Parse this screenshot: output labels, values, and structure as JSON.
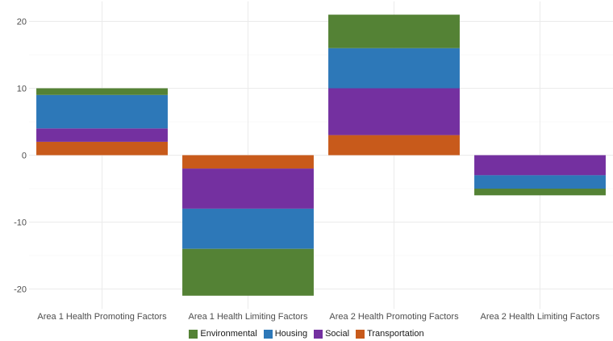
{
  "chart_data": {
    "type": "bar",
    "stacked": true,
    "categories": [
      "Area 1 Health Promoting Factors",
      "Area 1 Health Limiting Factors",
      "Area 2 Health Promoting Factors",
      "Area 2 Health Limiting Factors"
    ],
    "series": [
      {
        "name": "Transportation",
        "color": "#c85a1b",
        "values": [
          2,
          -2,
          3,
          0
        ]
      },
      {
        "name": "Social",
        "color": "#7430a0",
        "values": [
          2,
          -6,
          7,
          -3
        ]
      },
      {
        "name": "Housing",
        "color": "#2d78b8",
        "values": [
          5,
          -6,
          6,
          -2
        ]
      },
      {
        "name": "Environmental",
        "color": "#548235",
        "values": [
          1,
          -7,
          5,
          -1
        ]
      }
    ],
    "legend_order": [
      "Environmental",
      "Housing",
      "Social",
      "Transportation"
    ],
    "yticks": [
      -20,
      -10,
      0,
      10,
      20
    ],
    "ylim": [
      -23,
      23
    ],
    "title": "",
    "xlabel": "",
    "ylabel": "",
    "grid": true,
    "legend_position": "bottom"
  }
}
